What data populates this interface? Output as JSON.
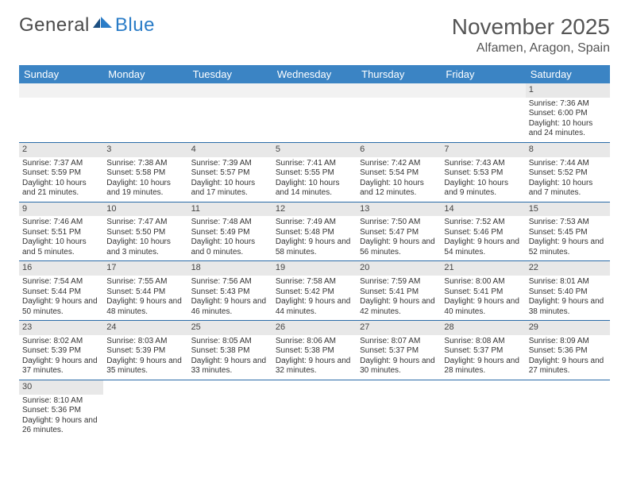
{
  "logo": {
    "part1": "General",
    "part2": "Blue"
  },
  "title": "November 2025",
  "location": "Alfamen, Aragon, Spain",
  "header_bg": "#3b84c4",
  "header_fg": "#ffffff",
  "divider_color": "#2a6ba8",
  "daynum_bg": "#e8e8e8",
  "weekdays": [
    "Sunday",
    "Monday",
    "Tuesday",
    "Wednesday",
    "Thursday",
    "Friday",
    "Saturday"
  ],
  "weeks": [
    [
      null,
      null,
      null,
      null,
      null,
      null,
      {
        "d": "1",
        "sr": "Sunrise: 7:36 AM",
        "ss": "Sunset: 6:00 PM",
        "dl": "Daylight: 10 hours and 24 minutes."
      }
    ],
    [
      {
        "d": "2",
        "sr": "Sunrise: 7:37 AM",
        "ss": "Sunset: 5:59 PM",
        "dl": "Daylight: 10 hours and 21 minutes."
      },
      {
        "d": "3",
        "sr": "Sunrise: 7:38 AM",
        "ss": "Sunset: 5:58 PM",
        "dl": "Daylight: 10 hours and 19 minutes."
      },
      {
        "d": "4",
        "sr": "Sunrise: 7:39 AM",
        "ss": "Sunset: 5:57 PM",
        "dl": "Daylight: 10 hours and 17 minutes."
      },
      {
        "d": "5",
        "sr": "Sunrise: 7:41 AM",
        "ss": "Sunset: 5:55 PM",
        "dl": "Daylight: 10 hours and 14 minutes."
      },
      {
        "d": "6",
        "sr": "Sunrise: 7:42 AM",
        "ss": "Sunset: 5:54 PM",
        "dl": "Daylight: 10 hours and 12 minutes."
      },
      {
        "d": "7",
        "sr": "Sunrise: 7:43 AM",
        "ss": "Sunset: 5:53 PM",
        "dl": "Daylight: 10 hours and 9 minutes."
      },
      {
        "d": "8",
        "sr": "Sunrise: 7:44 AM",
        "ss": "Sunset: 5:52 PM",
        "dl": "Daylight: 10 hours and 7 minutes."
      }
    ],
    [
      {
        "d": "9",
        "sr": "Sunrise: 7:46 AM",
        "ss": "Sunset: 5:51 PM",
        "dl": "Daylight: 10 hours and 5 minutes."
      },
      {
        "d": "10",
        "sr": "Sunrise: 7:47 AM",
        "ss": "Sunset: 5:50 PM",
        "dl": "Daylight: 10 hours and 3 minutes."
      },
      {
        "d": "11",
        "sr": "Sunrise: 7:48 AM",
        "ss": "Sunset: 5:49 PM",
        "dl": "Daylight: 10 hours and 0 minutes."
      },
      {
        "d": "12",
        "sr": "Sunrise: 7:49 AM",
        "ss": "Sunset: 5:48 PM",
        "dl": "Daylight: 9 hours and 58 minutes."
      },
      {
        "d": "13",
        "sr": "Sunrise: 7:50 AM",
        "ss": "Sunset: 5:47 PM",
        "dl": "Daylight: 9 hours and 56 minutes."
      },
      {
        "d": "14",
        "sr": "Sunrise: 7:52 AM",
        "ss": "Sunset: 5:46 PM",
        "dl": "Daylight: 9 hours and 54 minutes."
      },
      {
        "d": "15",
        "sr": "Sunrise: 7:53 AM",
        "ss": "Sunset: 5:45 PM",
        "dl": "Daylight: 9 hours and 52 minutes."
      }
    ],
    [
      {
        "d": "16",
        "sr": "Sunrise: 7:54 AM",
        "ss": "Sunset: 5:44 PM",
        "dl": "Daylight: 9 hours and 50 minutes."
      },
      {
        "d": "17",
        "sr": "Sunrise: 7:55 AM",
        "ss": "Sunset: 5:44 PM",
        "dl": "Daylight: 9 hours and 48 minutes."
      },
      {
        "d": "18",
        "sr": "Sunrise: 7:56 AM",
        "ss": "Sunset: 5:43 PM",
        "dl": "Daylight: 9 hours and 46 minutes."
      },
      {
        "d": "19",
        "sr": "Sunrise: 7:58 AM",
        "ss": "Sunset: 5:42 PM",
        "dl": "Daylight: 9 hours and 44 minutes."
      },
      {
        "d": "20",
        "sr": "Sunrise: 7:59 AM",
        "ss": "Sunset: 5:41 PM",
        "dl": "Daylight: 9 hours and 42 minutes."
      },
      {
        "d": "21",
        "sr": "Sunrise: 8:00 AM",
        "ss": "Sunset: 5:41 PM",
        "dl": "Daylight: 9 hours and 40 minutes."
      },
      {
        "d": "22",
        "sr": "Sunrise: 8:01 AM",
        "ss": "Sunset: 5:40 PM",
        "dl": "Daylight: 9 hours and 38 minutes."
      }
    ],
    [
      {
        "d": "23",
        "sr": "Sunrise: 8:02 AM",
        "ss": "Sunset: 5:39 PM",
        "dl": "Daylight: 9 hours and 37 minutes."
      },
      {
        "d": "24",
        "sr": "Sunrise: 8:03 AM",
        "ss": "Sunset: 5:39 PM",
        "dl": "Daylight: 9 hours and 35 minutes."
      },
      {
        "d": "25",
        "sr": "Sunrise: 8:05 AM",
        "ss": "Sunset: 5:38 PM",
        "dl": "Daylight: 9 hours and 33 minutes."
      },
      {
        "d": "26",
        "sr": "Sunrise: 8:06 AM",
        "ss": "Sunset: 5:38 PM",
        "dl": "Daylight: 9 hours and 32 minutes."
      },
      {
        "d": "27",
        "sr": "Sunrise: 8:07 AM",
        "ss": "Sunset: 5:37 PM",
        "dl": "Daylight: 9 hours and 30 minutes."
      },
      {
        "d": "28",
        "sr": "Sunrise: 8:08 AM",
        "ss": "Sunset: 5:37 PM",
        "dl": "Daylight: 9 hours and 28 minutes."
      },
      {
        "d": "29",
        "sr": "Sunrise: 8:09 AM",
        "ss": "Sunset: 5:36 PM",
        "dl": "Daylight: 9 hours and 27 minutes."
      }
    ],
    [
      {
        "d": "30",
        "sr": "Sunrise: 8:10 AM",
        "ss": "Sunset: 5:36 PM",
        "dl": "Daylight: 9 hours and 26 minutes."
      },
      null,
      null,
      null,
      null,
      null,
      null
    ]
  ]
}
